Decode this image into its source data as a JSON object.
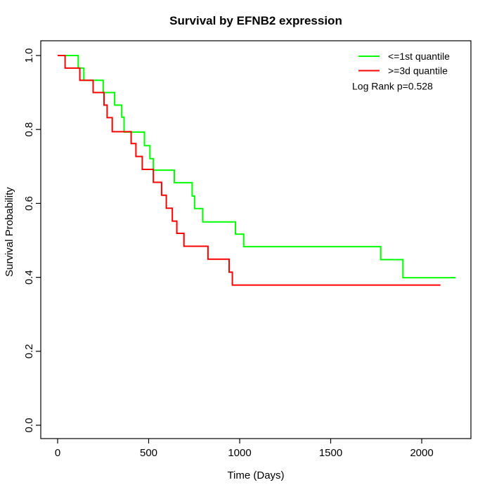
{
  "title": "Survival by EFNB2 expression",
  "axes": {
    "x": {
      "label": "Time (Days)",
      "ticks": [
        "0",
        "500",
        "1000",
        "1500",
        "2000"
      ]
    },
    "y": {
      "label": "Survival Probability",
      "ticks": [
        "0.0",
        "0.2",
        "0.4",
        "0.6",
        "0.8",
        "1.0"
      ]
    }
  },
  "legend": {
    "items": [
      {
        "label": "<=1st quantile",
        "color": "#00ff00"
      },
      {
        "label": ">=3d quantile",
        "color": "#ff0000"
      }
    ],
    "note": "Log Rank p=0.528"
  },
  "chart_data": {
    "type": "line",
    "variant": "kaplan-meier-step",
    "title": "Survival by EFNB2 expression",
    "xlabel": "Time (Days)",
    "ylabel": "Survival Probability",
    "xlim": [
      0,
      2270
    ],
    "ylim": [
      0.0,
      1.0
    ],
    "x_ticks": [
      0,
      500,
      1000,
      1500,
      2000
    ],
    "y_ticks": [
      0.0,
      0.2,
      0.4,
      0.6,
      0.8,
      1.0
    ],
    "grid": false,
    "legend_position": "top-right",
    "annotation": "Log Rank p=0.528",
    "series": [
      {
        "name": "<=1st quantile",
        "color": "#00ff00",
        "end_time": 2187,
        "steps": [
          [
            0,
            1.0
          ],
          [
            113,
            0.966
          ],
          [
            144,
            0.933
          ],
          [
            250,
            0.9
          ],
          [
            313,
            0.866
          ],
          [
            352,
            0.833
          ],
          [
            365,
            0.793
          ],
          [
            477,
            0.756
          ],
          [
            507,
            0.721
          ],
          [
            526,
            0.69
          ],
          [
            641,
            0.656
          ],
          [
            739,
            0.62
          ],
          [
            752,
            0.586
          ],
          [
            797,
            0.55
          ],
          [
            977,
            0.517
          ],
          [
            1022,
            0.483
          ],
          [
            1775,
            0.448
          ],
          [
            1897,
            0.399
          ]
        ]
      },
      {
        "name": ">=3d quantile",
        "color": "#ff0000",
        "end_time": 2103,
        "steps": [
          [
            0,
            1.0
          ],
          [
            41,
            0.966
          ],
          [
            122,
            0.933
          ],
          [
            195,
            0.9
          ],
          [
            255,
            0.866
          ],
          [
            272,
            0.832
          ],
          [
            300,
            0.794
          ],
          [
            404,
            0.762
          ],
          [
            430,
            0.727
          ],
          [
            465,
            0.692
          ],
          [
            526,
            0.657
          ],
          [
            571,
            0.622
          ],
          [
            597,
            0.587
          ],
          [
            630,
            0.552
          ],
          [
            655,
            0.519
          ],
          [
            694,
            0.484
          ],
          [
            826,
            0.449
          ],
          [
            942,
            0.414
          ],
          [
            960,
            0.379
          ]
        ]
      }
    ]
  }
}
